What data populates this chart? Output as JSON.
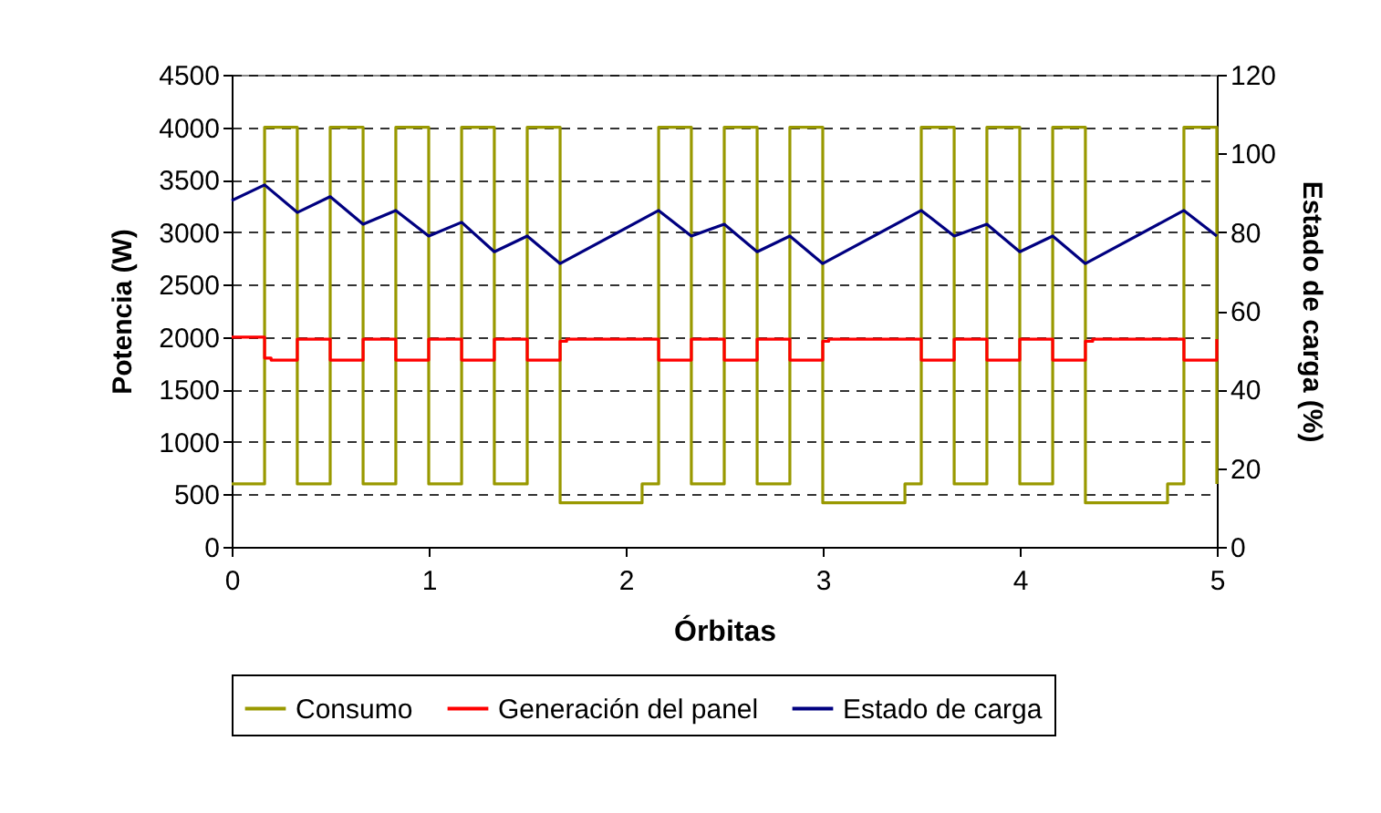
{
  "chart_data": {
    "type": "line",
    "xlabel": "Órbitas",
    "ylabel": "Potencia (W)",
    "y2label": "Estado de carga (%)",
    "xlim": [
      0,
      5
    ],
    "xticks": [
      0,
      1,
      2,
      3,
      4,
      5
    ],
    "ylim": [
      0,
      4500
    ],
    "yticks": [
      0,
      500,
      1000,
      1500,
      2000,
      2500,
      3000,
      3500,
      4000,
      4500
    ],
    "y2lim": [
      0,
      120
    ],
    "y2ticks": [
      0,
      20,
      40,
      60,
      80,
      100,
      120
    ],
    "grid": "y",
    "legend": "bottom",
    "marker": "none",
    "line_style": "solid",
    "series": [
      {
        "name": "Consumo",
        "type": "step",
        "color": "#999900",
        "x": [
          0,
          0.167,
          0.333,
          0.5,
          0.667,
          0.833,
          1,
          1.167,
          1.333,
          1.5,
          1.667,
          2.083,
          2.167,
          2.333,
          2.5,
          2.667,
          2.833,
          3,
          3.417,
          3.5,
          3.667,
          3.833,
          4,
          4.167,
          4.333,
          4.75,
          4.833,
          5
        ],
        "values": [
          600,
          4000,
          600,
          4000,
          600,
          4000,
          600,
          4000,
          600,
          4000,
          420,
          600,
          4000,
          600,
          4000,
          600,
          4000,
          420,
          600,
          4000,
          600,
          4000,
          600,
          4000,
          420,
          600,
          4000,
          600
        ]
      },
      {
        "name": "Generación del panel",
        "type": "step",
        "color": "#ff0000",
        "x": [
          0,
          0.167,
          0.2,
          0.333,
          0.5,
          0.667,
          0.833,
          1,
          1.167,
          1.333,
          1.5,
          1.667,
          1.7,
          2.167,
          2.333,
          2.5,
          2.667,
          2.833,
          3,
          3.03,
          3.5,
          3.667,
          3.833,
          4,
          4.167,
          4.333,
          4.37,
          4.833,
          5
        ],
        "values": [
          2000,
          1800,
          1780,
          1980,
          1780,
          1980,
          1780,
          1980,
          1780,
          1980,
          1780,
          1960,
          1980,
          1780,
          1980,
          1780,
          1980,
          1780,
          1960,
          1980,
          1780,
          1980,
          1780,
          1980,
          1780,
          1960,
          1980,
          1780,
          1980
        ]
      },
      {
        "name": "Estado de carga",
        "axis": "y2",
        "color": "#000080",
        "x": [
          0,
          0.167,
          0.333,
          0.5,
          0.667,
          0.833,
          1,
          1.167,
          1.333,
          1.5,
          1.667,
          2.167,
          2.333,
          2.5,
          2.667,
          2.833,
          3,
          3.5,
          3.667,
          3.833,
          4,
          4.167,
          4.333,
          4.833,
          5
        ],
        "values": [
          88,
          92,
          85,
          89,
          82,
          85.5,
          79,
          82.5,
          75,
          79,
          72,
          85.5,
          79,
          82,
          75,
          79,
          72,
          85.5,
          79,
          82,
          75,
          79,
          72,
          85.5,
          79
        ]
      }
    ]
  }
}
